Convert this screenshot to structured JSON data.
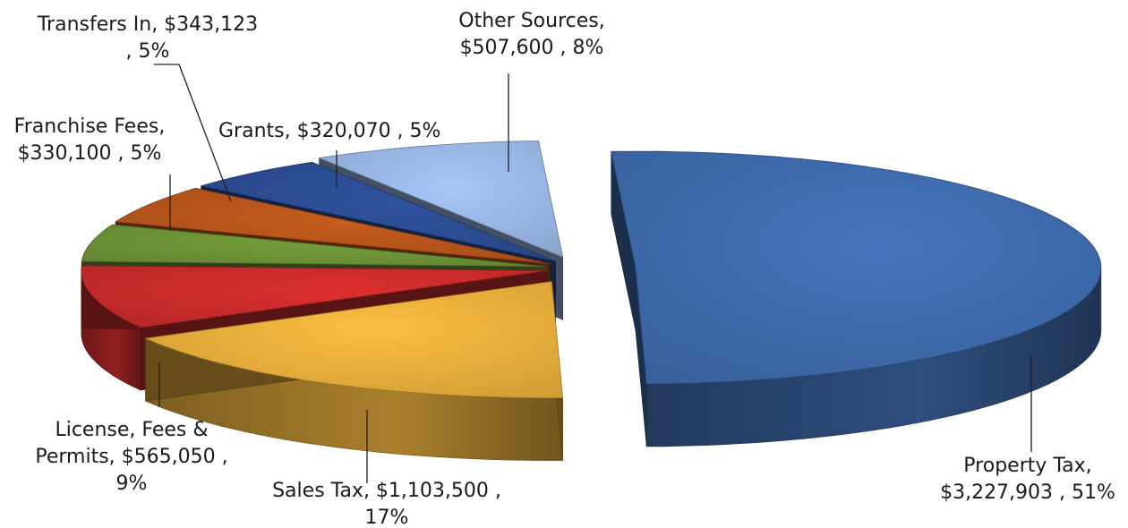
{
  "chart_data": {
    "type": "pie",
    "three_d": true,
    "exploded": true,
    "slices": [
      {
        "category": "Property Tax",
        "value": 3227903,
        "percent": 51,
        "color": "#3d68a8",
        "label_lines": [
          "Property Tax,",
          "$3,227,903 , 51%"
        ]
      },
      {
        "category": "Sales Tax",
        "value": 1103500,
        "percent": 17,
        "color": "#e2aa3a",
        "label_lines": [
          "Sales Tax, $1,103,500 ,",
          "17%"
        ]
      },
      {
        "category": "License, Fees & Permits",
        "value": 565050,
        "percent": 9,
        "color": "#c42a2a",
        "label_lines": [
          "License, Fees &",
          "Permits, $565,050 ,",
          "9%"
        ]
      },
      {
        "category": "Franchise Fees",
        "value": 330100,
        "percent": 5,
        "color": "#6a8f35",
        "label_lines": [
          "Franchise Fees,",
          "$330,100 , 5%"
        ]
      },
      {
        "category": "Transfers In",
        "value": 343123,
        "percent": 5,
        "color": "#b2531a",
        "label_lines": [
          "Transfers In, $343,123",
          ", 5%"
        ]
      },
      {
        "category": "Grants",
        "value": 320070,
        "percent": 5,
        "color": "#2b4a8e",
        "label_lines": [
          "Grants, $320,070 , 5%"
        ]
      },
      {
        "category": "Other Sources",
        "value": 507600,
        "percent": 8,
        "color": "#94b2de",
        "label_lines": [
          "Other Sources,",
          "$507,600 , 8%"
        ]
      }
    ]
  }
}
